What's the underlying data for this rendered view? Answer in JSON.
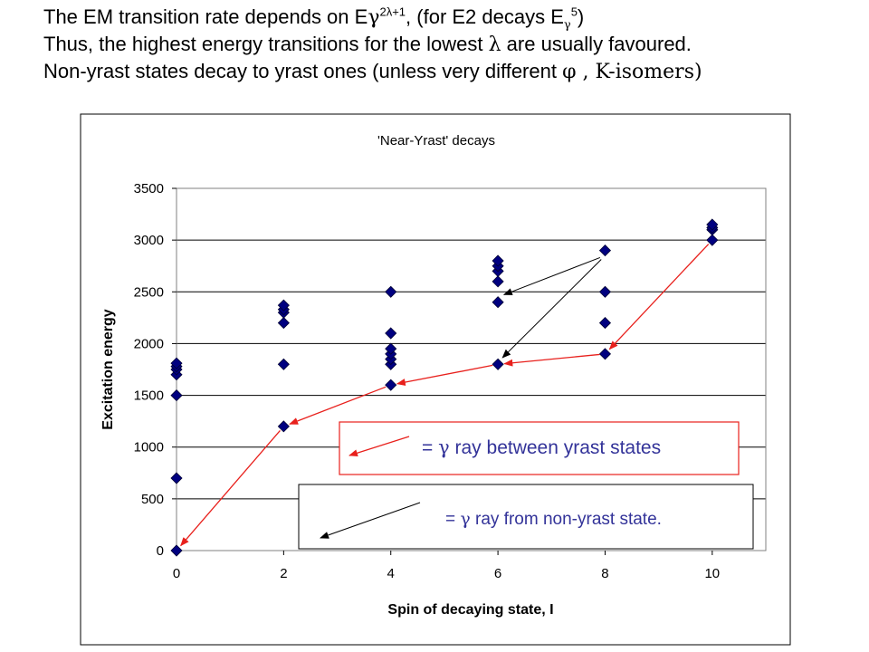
{
  "heading": {
    "line1": {
      "a": "The EM transition rate depends on E",
      "g1": "γ",
      "sup1": "2λ+1",
      "b": ", (for E2 decays E",
      "g2": "γ",
      "sup2": "5",
      "c": ")"
    },
    "line2": {
      "a": "Thus, the highest energy transitions for the lowest ",
      "lambda": "λ",
      "b": "  are usually favoured."
    },
    "line3": {
      "a": "Non-yrast states decay to yrast ones (unless very different ",
      "phi": "φ",
      "b": " , K-isomers)"
    }
  },
  "chart_data": {
    "type": "scatter",
    "title": "'Near-Yrast' decays",
    "xlabel": "Spin of decaying state, I",
    "ylabel": "Excitation energy",
    "xlim": [
      0,
      11
    ],
    "ylim": [
      0,
      3500
    ],
    "xticks": [
      0,
      2,
      4,
      6,
      8,
      10
    ],
    "yticks": [
      0,
      500,
      1000,
      1500,
      2000,
      2500,
      3000,
      3500
    ],
    "grid": "horizontal",
    "marker": "diamond",
    "marker_color": "#000080",
    "points": [
      {
        "x": 0,
        "y": 0
      },
      {
        "x": 0,
        "y": 700
      },
      {
        "x": 0,
        "y": 1500
      },
      {
        "x": 0,
        "y": 1700
      },
      {
        "x": 0,
        "y": 1750
      },
      {
        "x": 0,
        "y": 1780
      },
      {
        "x": 0,
        "y": 1810
      },
      {
        "x": 2,
        "y": 1200
      },
      {
        "x": 2,
        "y": 1800
      },
      {
        "x": 2,
        "y": 2200
      },
      {
        "x": 2,
        "y": 2300
      },
      {
        "x": 2,
        "y": 2330
      },
      {
        "x": 2,
        "y": 2370
      },
      {
        "x": 4,
        "y": 1600
      },
      {
        "x": 4,
        "y": 1800
      },
      {
        "x": 4,
        "y": 1850
      },
      {
        "x": 4,
        "y": 1900
      },
      {
        "x": 4,
        "y": 1950
      },
      {
        "x": 4,
        "y": 2100
      },
      {
        "x": 4,
        "y": 2500
      },
      {
        "x": 6,
        "y": 1800
      },
      {
        "x": 6,
        "y": 2400
      },
      {
        "x": 6,
        "y": 2600
      },
      {
        "x": 6,
        "y": 2700
      },
      {
        "x": 6,
        "y": 2750
      },
      {
        "x": 6,
        "y": 2800
      },
      {
        "x": 8,
        "y": 1900
      },
      {
        "x": 8,
        "y": 2200
      },
      {
        "x": 8,
        "y": 2500
      },
      {
        "x": 8,
        "y": 2900
      },
      {
        "x": 10,
        "y": 3000
      },
      {
        "x": 10,
        "y": 3100
      },
      {
        "x": 10,
        "y": 3120
      },
      {
        "x": 10,
        "y": 3150
      }
    ],
    "yrast_arrows": [
      {
        "from": [
          2,
          1200
        ],
        "to": [
          0,
          0
        ]
      },
      {
        "from": [
          4,
          1600
        ],
        "to": [
          2,
          1200
        ]
      },
      {
        "from": [
          6,
          1800
        ],
        "to": [
          4,
          1600
        ]
      },
      {
        "from": [
          8,
          1900
        ],
        "to": [
          6,
          1800
        ]
      },
      {
        "from": [
          10,
          3000
        ],
        "to": [
          8,
          1900
        ]
      }
    ],
    "nonyrast_arrows": [
      {
        "from": [
          8,
          2850
        ],
        "to": [
          6,
          2450
        ]
      },
      {
        "from": [
          8,
          2850
        ],
        "to": [
          6,
          1820
        ]
      }
    ],
    "legend": {
      "yrast_label": "=  ray between yrast states",
      "yrast_color": "#e8201c",
      "nonyrast_label": "=  ray from non-yrast state.",
      "nonyrast_color": "#000000",
      "gamma": "γ"
    }
  }
}
